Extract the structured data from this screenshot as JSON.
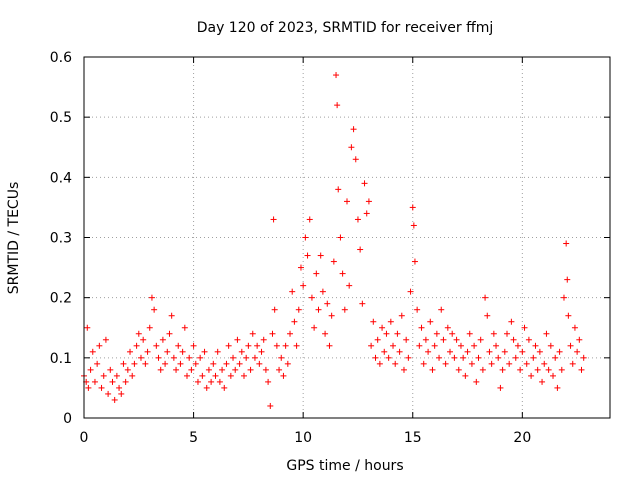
{
  "chart_data": {
    "type": "scatter",
    "title": "Day 120 of 2023, SRMTID for receiver ffmj",
    "xlabel": "GPS time / hours",
    "ylabel": "SRMTID / TECUs",
    "xlim": [
      0,
      24
    ],
    "ylim": [
      0,
      0.6
    ],
    "x_ticks": [
      "0",
      "5",
      "10",
      "15",
      "20"
    ],
    "x_tick_values": [
      0,
      5,
      10,
      15,
      20
    ],
    "y_ticks": [
      "0",
      "0.1",
      "0.2",
      "0.3",
      "0.4",
      "0.5",
      "0.6"
    ],
    "y_tick_values": [
      0,
      0.1,
      0.2,
      0.3,
      0.4,
      0.5,
      0.6
    ],
    "grid": true,
    "marker": "plus",
    "color": "#ff0000",
    "series": [
      {
        "name": "SRMTID",
        "points": [
          [
            0.0,
            0.07
          ],
          [
            0.1,
            0.06
          ],
          [
            0.15,
            0.15
          ],
          [
            0.2,
            0.05
          ],
          [
            0.3,
            0.08
          ],
          [
            0.4,
            0.11
          ],
          [
            0.5,
            0.06
          ],
          [
            0.6,
            0.09
          ],
          [
            0.7,
            0.12
          ],
          [
            0.8,
            0.05
          ],
          [
            0.9,
            0.07
          ],
          [
            1.0,
            0.13
          ],
          [
            1.1,
            0.04
          ],
          [
            1.2,
            0.08
          ],
          [
            1.3,
            0.06
          ],
          [
            1.4,
            0.03
          ],
          [
            1.5,
            0.07
          ],
          [
            1.6,
            0.05
          ],
          [
            1.7,
            0.04
          ],
          [
            1.8,
            0.09
          ],
          [
            1.9,
            0.06
          ],
          [
            2.0,
            0.08
          ],
          [
            2.1,
            0.11
          ],
          [
            2.2,
            0.07
          ],
          [
            2.3,
            0.09
          ],
          [
            2.4,
            0.12
          ],
          [
            2.5,
            0.14
          ],
          [
            2.6,
            0.1
          ],
          [
            2.7,
            0.13
          ],
          [
            2.8,
            0.09
          ],
          [
            2.9,
            0.11
          ],
          [
            3.0,
            0.15
          ],
          [
            3.1,
            0.2
          ],
          [
            3.2,
            0.18
          ],
          [
            3.3,
            0.12
          ],
          [
            3.4,
            0.1
          ],
          [
            3.5,
            0.08
          ],
          [
            3.6,
            0.13
          ],
          [
            3.7,
            0.09
          ],
          [
            3.8,
            0.11
          ],
          [
            3.9,
            0.14
          ],
          [
            4.0,
            0.17
          ],
          [
            4.1,
            0.1
          ],
          [
            4.2,
            0.08
          ],
          [
            4.3,
            0.12
          ],
          [
            4.4,
            0.09
          ],
          [
            4.5,
            0.11
          ],
          [
            4.6,
            0.15
          ],
          [
            4.7,
            0.07
          ],
          [
            4.8,
            0.1
          ],
          [
            4.9,
            0.08
          ],
          [
            5.0,
            0.12
          ],
          [
            5.1,
            0.09
          ],
          [
            5.2,
            0.06
          ],
          [
            5.3,
            0.1
          ],
          [
            5.4,
            0.07
          ],
          [
            5.5,
            0.11
          ],
          [
            5.6,
            0.05
          ],
          [
            5.7,
            0.08
          ],
          [
            5.8,
            0.06
          ],
          [
            5.9,
            0.09
          ],
          [
            6.0,
            0.07
          ],
          [
            6.1,
            0.11
          ],
          [
            6.2,
            0.06
          ],
          [
            6.3,
            0.08
          ],
          [
            6.4,
            0.05
          ],
          [
            6.5,
            0.09
          ],
          [
            6.6,
            0.12
          ],
          [
            6.7,
            0.07
          ],
          [
            6.8,
            0.1
          ],
          [
            6.9,
            0.08
          ],
          [
            7.0,
            0.13
          ],
          [
            7.1,
            0.09
          ],
          [
            7.2,
            0.11
          ],
          [
            7.3,
            0.07
          ],
          [
            7.4,
            0.1
          ],
          [
            7.5,
            0.12
          ],
          [
            7.6,
            0.08
          ],
          [
            7.7,
            0.14
          ],
          [
            7.8,
            0.1
          ],
          [
            7.9,
            0.12
          ],
          [
            8.0,
            0.09
          ],
          [
            8.1,
            0.11
          ],
          [
            8.2,
            0.13
          ],
          [
            8.3,
            0.08
          ],
          [
            8.4,
            0.06
          ],
          [
            8.5,
            0.02
          ],
          [
            8.6,
            0.14
          ],
          [
            8.65,
            0.33
          ],
          [
            8.7,
            0.18
          ],
          [
            8.8,
            0.12
          ],
          [
            8.9,
            0.08
          ],
          [
            9.0,
            0.1
          ],
          [
            9.1,
            0.07
          ],
          [
            9.2,
            0.12
          ],
          [
            9.3,
            0.09
          ],
          [
            9.4,
            0.14
          ],
          [
            9.5,
            0.21
          ],
          [
            9.6,
            0.16
          ],
          [
            9.7,
            0.12
          ],
          [
            9.8,
            0.18
          ],
          [
            9.9,
            0.25
          ],
          [
            10.0,
            0.22
          ],
          [
            10.1,
            0.3
          ],
          [
            10.2,
            0.27
          ],
          [
            10.3,
            0.33
          ],
          [
            10.4,
            0.2
          ],
          [
            10.5,
            0.15
          ],
          [
            10.6,
            0.24
          ],
          [
            10.7,
            0.18
          ],
          [
            10.8,
            0.27
          ],
          [
            10.9,
            0.21
          ],
          [
            11.0,
            0.14
          ],
          [
            11.1,
            0.19
          ],
          [
            11.2,
            0.12
          ],
          [
            11.3,
            0.17
          ],
          [
            11.4,
            0.26
          ],
          [
            11.5,
            0.57
          ],
          [
            11.55,
            0.52
          ],
          [
            11.6,
            0.38
          ],
          [
            11.7,
            0.3
          ],
          [
            11.8,
            0.24
          ],
          [
            11.9,
            0.18
          ],
          [
            12.0,
            0.36
          ],
          [
            12.1,
            0.22
          ],
          [
            12.2,
            0.45
          ],
          [
            12.3,
            0.48
          ],
          [
            12.4,
            0.43
          ],
          [
            12.5,
            0.33
          ],
          [
            12.6,
            0.28
          ],
          [
            12.7,
            0.19
          ],
          [
            12.8,
            0.39
          ],
          [
            12.9,
            0.34
          ],
          [
            13.0,
            0.36
          ],
          [
            13.1,
            0.12
          ],
          [
            13.2,
            0.16
          ],
          [
            13.3,
            0.1
          ],
          [
            13.4,
            0.13
          ],
          [
            13.5,
            0.09
          ],
          [
            13.6,
            0.15
          ],
          [
            13.7,
            0.11
          ],
          [
            13.8,
            0.14
          ],
          [
            13.9,
            0.1
          ],
          [
            14.0,
            0.16
          ],
          [
            14.1,
            0.12
          ],
          [
            14.2,
            0.09
          ],
          [
            14.3,
            0.14
          ],
          [
            14.4,
            0.11
          ],
          [
            14.5,
            0.17
          ],
          [
            14.6,
            0.08
          ],
          [
            14.7,
            0.13
          ],
          [
            14.8,
            0.1
          ],
          [
            14.9,
            0.21
          ],
          [
            15.0,
            0.35
          ],
          [
            15.05,
            0.32
          ],
          [
            15.1,
            0.26
          ],
          [
            15.2,
            0.18
          ],
          [
            15.3,
            0.12
          ],
          [
            15.4,
            0.15
          ],
          [
            15.5,
            0.09
          ],
          [
            15.6,
            0.13
          ],
          [
            15.7,
            0.11
          ],
          [
            15.8,
            0.16
          ],
          [
            15.9,
            0.08
          ],
          [
            16.0,
            0.12
          ],
          [
            16.1,
            0.14
          ],
          [
            16.2,
            0.1
          ],
          [
            16.3,
            0.18
          ],
          [
            16.4,
            0.13
          ],
          [
            16.5,
            0.09
          ],
          [
            16.6,
            0.15
          ],
          [
            16.7,
            0.11
          ],
          [
            16.8,
            0.14
          ],
          [
            16.9,
            0.1
          ],
          [
            17.0,
            0.13
          ],
          [
            17.1,
            0.08
          ],
          [
            17.2,
            0.12
          ],
          [
            17.3,
            0.1
          ],
          [
            17.4,
            0.07
          ],
          [
            17.5,
            0.11
          ],
          [
            17.6,
            0.14
          ],
          [
            17.7,
            0.09
          ],
          [
            17.8,
            0.12
          ],
          [
            17.9,
            0.06
          ],
          [
            18.0,
            0.1
          ],
          [
            18.1,
            0.13
          ],
          [
            18.2,
            0.08
          ],
          [
            18.3,
            0.2
          ],
          [
            18.4,
            0.17
          ],
          [
            18.5,
            0.11
          ],
          [
            18.6,
            0.09
          ],
          [
            18.7,
            0.14
          ],
          [
            18.8,
            0.12
          ],
          [
            18.9,
            0.1
          ],
          [
            19.0,
            0.05
          ],
          [
            19.1,
            0.08
          ],
          [
            19.2,
            0.11
          ],
          [
            19.3,
            0.14
          ],
          [
            19.4,
            0.09
          ],
          [
            19.5,
            0.16
          ],
          [
            19.6,
            0.13
          ],
          [
            19.7,
            0.1
          ],
          [
            19.8,
            0.12
          ],
          [
            19.9,
            0.08
          ],
          [
            20.0,
            0.11
          ],
          [
            20.1,
            0.15
          ],
          [
            20.2,
            0.09
          ],
          [
            20.3,
            0.13
          ],
          [
            20.4,
            0.07
          ],
          [
            20.5,
            0.1
          ],
          [
            20.6,
            0.12
          ],
          [
            20.7,
            0.08
          ],
          [
            20.8,
            0.11
          ],
          [
            20.9,
            0.06
          ],
          [
            21.0,
            0.09
          ],
          [
            21.1,
            0.14
          ],
          [
            21.2,
            0.08
          ],
          [
            21.3,
            0.12
          ],
          [
            21.4,
            0.07
          ],
          [
            21.5,
            0.1
          ],
          [
            21.6,
            0.05
          ],
          [
            21.7,
            0.11
          ],
          [
            21.8,
            0.08
          ],
          [
            21.9,
            0.2
          ],
          [
            22.0,
            0.29
          ],
          [
            22.05,
            0.23
          ],
          [
            22.1,
            0.17
          ],
          [
            22.2,
            0.12
          ],
          [
            22.3,
            0.09
          ],
          [
            22.4,
            0.15
          ],
          [
            22.5,
            0.11
          ],
          [
            22.6,
            0.13
          ],
          [
            22.7,
            0.08
          ],
          [
            22.8,
            0.1
          ]
        ]
      }
    ]
  }
}
